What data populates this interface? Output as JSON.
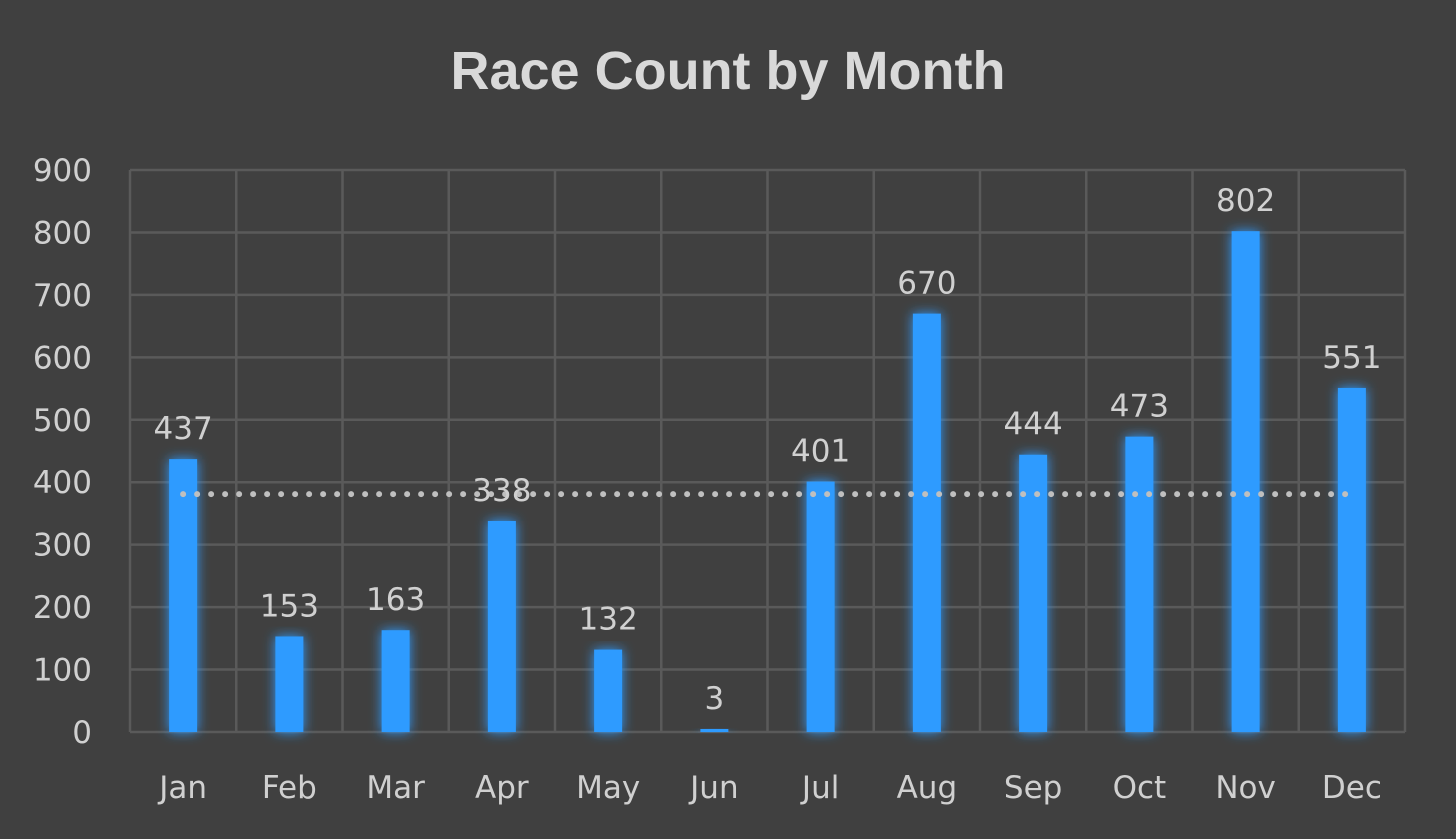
{
  "chart_data": {
    "type": "bar",
    "title": "Race Count by Month",
    "xlabel": "",
    "ylabel": "",
    "categories": [
      "Jan",
      "Feb",
      "Mar",
      "Apr",
      "May",
      "Jun",
      "Jul",
      "Aug",
      "Sep",
      "Oct",
      "Nov",
      "Dec"
    ],
    "values": [
      437,
      153,
      163,
      338,
      132,
      3,
      401,
      670,
      444,
      473,
      802,
      551
    ],
    "ylim": [
      0,
      900
    ],
    "yticks": [
      0,
      100,
      200,
      300,
      400,
      500,
      600,
      700,
      800,
      900
    ],
    "average_line": 381,
    "grid": true,
    "bar_color": "#2e9bff",
    "background_color": "#404040",
    "grid_color": "#5a5a5a",
    "text_color": "#d0d0d0",
    "average_line_color": "#bfbfbf"
  }
}
